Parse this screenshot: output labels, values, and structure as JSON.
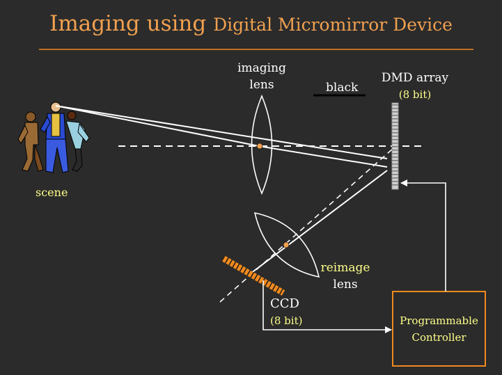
{
  "title": {
    "part1": "Imaging using ",
    "part2": "Digital Micromirror Device"
  },
  "labels": {
    "imaging_lens_line1": "imaging",
    "imaging_lens_line2": "lens",
    "black": "black",
    "dmd_line1": "DMD array",
    "dmd_line2": "(8 bit)",
    "scene": "scene",
    "reimage_line1": "reimage",
    "reimage_line2": "lens",
    "ccd_line1": "CCD",
    "ccd_line2": "(8 bit)",
    "controller_line1": "Programmable",
    "controller_line2": "Controller"
  },
  "colors": {
    "background": "#2b2b2b",
    "title": "#f0a050",
    "accent_orange": "#f08a1e",
    "label_white": "#ffffff",
    "label_yellow": "#ffff8a",
    "lines": "#ffffff"
  }
}
